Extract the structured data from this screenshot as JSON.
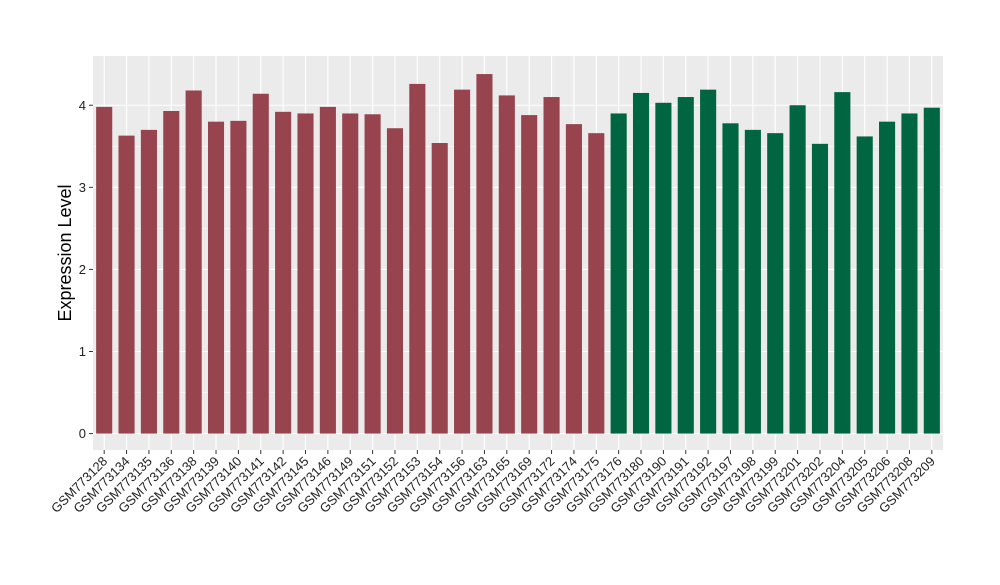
{
  "chart_data": {
    "type": "bar",
    "title": "",
    "xlabel": "",
    "ylabel": "Expression Level",
    "ylim": [
      -0.2,
      4.6
    ],
    "yticks": [
      0,
      1,
      2,
      3,
      4
    ],
    "grid": true,
    "categories": [
      "GSM773128",
      "GSM773134",
      "GSM773135",
      "GSM773136",
      "GSM773138",
      "GSM773139",
      "GSM773140",
      "GSM773141",
      "GSM773142",
      "GSM773145",
      "GSM773146",
      "GSM773149",
      "GSM773151",
      "GSM773152",
      "GSM773153",
      "GSM773154",
      "GSM773156",
      "GSM773163",
      "GSM773165",
      "GSM773169",
      "GSM773172",
      "GSM773174",
      "GSM773175",
      "GSM773176",
      "GSM773180",
      "GSM773190",
      "GSM773191",
      "GSM773192",
      "GSM773197",
      "GSM773198",
      "GSM773199",
      "GSM773201",
      "GSM773202",
      "GSM773204",
      "GSM773205",
      "GSM773206",
      "GSM773208",
      "GSM773209"
    ],
    "values": [
      3.98,
      3.63,
      3.7,
      3.93,
      4.18,
      3.8,
      3.81,
      4.14,
      3.92,
      3.9,
      3.98,
      3.9,
      3.89,
      3.72,
      4.26,
      3.54,
      4.19,
      4.38,
      4.12,
      3.88,
      4.1,
      3.77,
      3.66,
      3.9,
      4.15,
      4.03,
      4.1,
      4.19,
      3.78,
      3.7,
      3.66,
      4.0,
      3.53,
      4.16,
      3.62,
      3.8,
      3.9,
      3.97
    ],
    "groups": [
      "g1",
      "g1",
      "g1",
      "g1",
      "g1",
      "g1",
      "g1",
      "g1",
      "g1",
      "g1",
      "g1",
      "g1",
      "g1",
      "g1",
      "g1",
      "g1",
      "g1",
      "g1",
      "g1",
      "g1",
      "g1",
      "g1",
      "g1",
      "g2",
      "g2",
      "g2",
      "g2",
      "g2",
      "g2",
      "g2",
      "g2",
      "g2",
      "g2",
      "g2",
      "g2",
      "g2",
      "g2",
      "g2"
    ],
    "colors": {
      "g1": "#98444f",
      "g2": "#006541",
      "panel": "#ebebeb",
      "grid": "#ffffff"
    }
  }
}
